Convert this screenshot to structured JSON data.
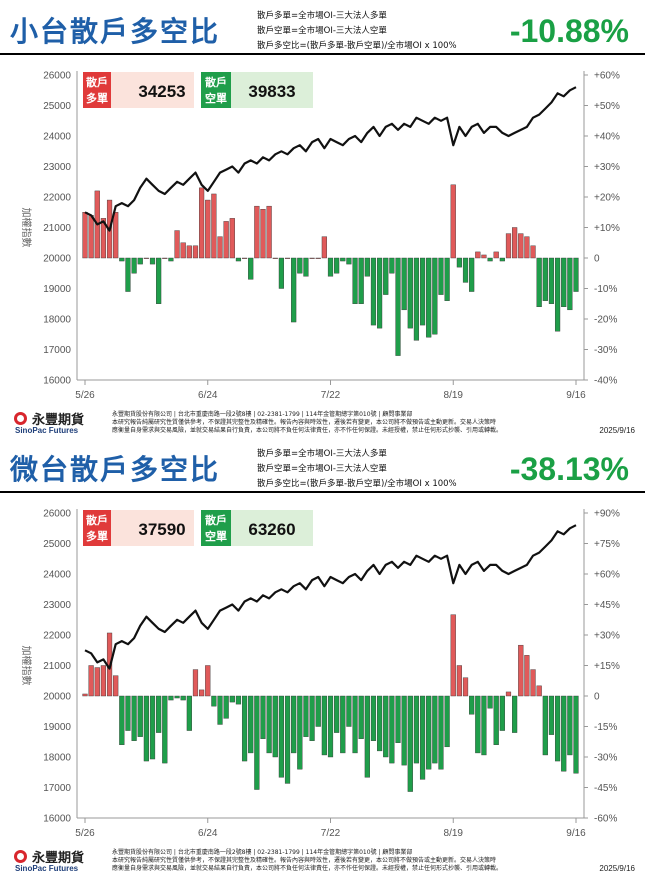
{
  "charts": [
    {
      "title": "小台散戶多空比",
      "definitions": [
        "散戶多單=全市場OI-三大法人多單",
        "散戶空單=全市場OI-三大法人空單",
        "散戶多空比=(散戶多單-散戶空單)/全市場OI x 100%"
      ],
      "ratio": "-10.88%",
      "long_label": [
        "散戶",
        "多單"
      ],
      "long_value": "34253",
      "short_label": [
        "散戶",
        "空單"
      ],
      "short_value": "39833",
      "footer": {
        "brand_zh": "永豐期貨",
        "brand_en": "SinoPac Futures",
        "disclaimer": [
          "永豐期貨股份有限公司 | 台北市重慶南路一段2號8樓 | 02-2381-1799 | 114年金管期總字第010號 | 顧問事業部",
          "本研究報告純屬研究性質僅供參考，不保證其完整性及精確性。報告內容與時效性，遷後若有變更，本公司將不做預告或主動更新。交易人決策時",
          "應衡量自身需求與交易風險，並就交易結果自行負責，本公司將不負任何法律責任，亦不作任何保證。未經授權，禁止任何形式抄襲、引用或轉載。"
        ],
        "date": "2025/9/16"
      },
      "chart_data": {
        "type": "bar+line",
        "ylabel": "加權指數",
        "left_axis": {
          "min": 16000,
          "max": 26000,
          "ticks": [
            "16000",
            "17000",
            "18000",
            "19000",
            "20000",
            "21000",
            "22000",
            "23000",
            "24000",
            "25000",
            "26000"
          ]
        },
        "right_axis": {
          "min": -40,
          "max": 60,
          "ticks": [
            "-40%",
            "-30%",
            "-20%",
            "-10%",
            "0",
            "+10%",
            "+20%",
            "+30%",
            "+40%",
            "+50%",
            "+60%"
          ]
        },
        "x_ticks": [
          "5/26",
          "6/24",
          "7/22",
          "8/19",
          "9/16"
        ],
        "x_tick_index": [
          0,
          20,
          40,
          60,
          80
        ],
        "index_values": [
          21500,
          21400,
          21100,
          21200,
          20900,
          21700,
          21800,
          21700,
          21900,
          22300,
          22600,
          22400,
          22200,
          22100,
          22300,
          22500,
          22400,
          22600,
          22800,
          22400,
          22200,
          22500,
          22800,
          22900,
          23000,
          22800,
          23100,
          23200,
          23100,
          23300,
          23200,
          23400,
          23500,
          23400,
          23600,
          23700,
          23500,
          23800,
          23900,
          23600,
          23900,
          23800,
          23700,
          23900,
          24000,
          23800,
          24100,
          24300,
          24000,
          24300,
          24400,
          24200,
          24400,
          24300,
          24600,
          24500,
          24400,
          24600,
          24500,
          24600,
          23700,
          24300,
          24000,
          24300,
          24400,
          24100,
          24300,
          24300,
          24100,
          24000,
          24100,
          24200,
          24300,
          24600,
          24700,
          24900,
          25100,
          25400,
          25300,
          25500,
          25600
        ],
        "ratio_values": [
          15,
          14,
          22,
          13,
          19,
          15,
          -1,
          -11,
          -5,
          -2,
          0,
          -2,
          -15,
          0,
          -1,
          9,
          5,
          4,
          4,
          23,
          19,
          21,
          7,
          12,
          13,
          -1,
          0,
          -7,
          17,
          16,
          17,
          0,
          -10,
          0,
          -21,
          -5,
          -6,
          0,
          0,
          7,
          -6,
          -5,
          -1,
          -2,
          -15,
          -15,
          -6,
          -22,
          -23,
          -12,
          -5,
          -32,
          -17,
          -23,
          -27,
          -22,
          -26,
          -25,
          -12,
          -14,
          24,
          -3,
          -8,
          -11,
          2,
          1,
          -1,
          2,
          -1,
          8,
          10,
          8,
          7,
          4,
          -16,
          -14,
          -15,
          -24,
          -16,
          -17,
          -11
        ]
      }
    },
    {
      "title": "微台散戶多空比",
      "definitions": [
        "散戶多單=全市場OI-三大法人多單",
        "散戶空單=全市場OI-三大法人空單",
        "散戶多空比=(散戶多單-散戶空單)/全市場OI x 100%"
      ],
      "ratio": "-38.13%",
      "long_label": [
        "散戶",
        "多單"
      ],
      "long_value": "37590",
      "short_label": [
        "散戶",
        "空單"
      ],
      "short_value": "63260",
      "footer": {
        "brand_zh": "永豐期貨",
        "brand_en": "SinoPac Futures",
        "disclaimer": [
          "永豐期貨股份有限公司 | 台北市重慶南路一段2號8樓 | 02-2381-1799 | 114年金管期總字第010號 | 顧問事業部",
          "本研究報告純屬研究性質僅供參考，不保證其完整性及精確性。報告內容與時效性，遷後若有變更，本公司將不做預告或主動更新。交易人決策時",
          "應衡量自身需求與交易風險，並就交易結果自行負責，本公司將不負任何法律責任，亦不作任何保證。未經授權，禁止任何形式抄襲、引用或轉載。"
        ],
        "date": "2025/9/16"
      },
      "chart_data": {
        "type": "bar+line",
        "ylabel": "加權指數",
        "left_axis": {
          "min": 16000,
          "max": 26000,
          "ticks": [
            "16000",
            "17000",
            "18000",
            "19000",
            "20000",
            "21000",
            "22000",
            "23000",
            "24000",
            "25000",
            "26000"
          ]
        },
        "right_axis": {
          "min": -60,
          "max": 90,
          "ticks": [
            "-60%",
            "-45%",
            "-30%",
            "-15%",
            "0",
            "+15%",
            "+30%",
            "+45%",
            "+60%",
            "+75%",
            "+90%"
          ]
        },
        "x_ticks": [
          "5/26",
          "6/24",
          "7/22",
          "8/19",
          "9/16"
        ],
        "x_tick_index": [
          0,
          20,
          40,
          60,
          80
        ],
        "index_values": [
          21500,
          21400,
          21100,
          21200,
          20900,
          21700,
          21800,
          21700,
          21900,
          22300,
          22600,
          22400,
          22200,
          22100,
          22300,
          22500,
          22400,
          22600,
          22800,
          22400,
          22200,
          22500,
          22800,
          22900,
          23000,
          22800,
          23100,
          23200,
          23100,
          23300,
          23200,
          23400,
          23500,
          23400,
          23600,
          23700,
          23500,
          23800,
          23900,
          23600,
          23900,
          23800,
          23700,
          23900,
          24000,
          23800,
          24100,
          24300,
          24000,
          24300,
          24400,
          24200,
          24400,
          24300,
          24600,
          24500,
          24400,
          24600,
          24500,
          24600,
          23700,
          24300,
          24000,
          24300,
          24400,
          24100,
          24300,
          24300,
          24100,
          24000,
          24100,
          24200,
          24300,
          24600,
          24700,
          24900,
          25100,
          25400,
          25300,
          25500,
          25600
        ],
        "ratio_values": [
          1,
          15,
          14,
          15,
          31,
          10,
          -24,
          -17,
          -22,
          -20,
          -32,
          -31,
          -18,
          -33,
          -2,
          -1,
          -2,
          -17,
          13,
          3,
          15,
          -5,
          -14,
          -11,
          -3,
          -4,
          -32,
          -28,
          -46,
          -21,
          -28,
          -30,
          -40,
          -43,
          -28,
          -36,
          -20,
          -22,
          -15,
          -29,
          -30,
          -18,
          -28,
          -15,
          -28,
          -21,
          -40,
          -22,
          -27,
          -30,
          -33,
          -23,
          -34,
          -47,
          -33,
          -41,
          -36,
          -33,
          -36,
          -25,
          40,
          15,
          9,
          -9,
          -28,
          -29,
          -6,
          -24,
          -17,
          2,
          -18,
          25,
          20,
          13,
          5,
          -29,
          -19,
          -32,
          -37,
          -29,
          -38
        ]
      }
    }
  ]
}
